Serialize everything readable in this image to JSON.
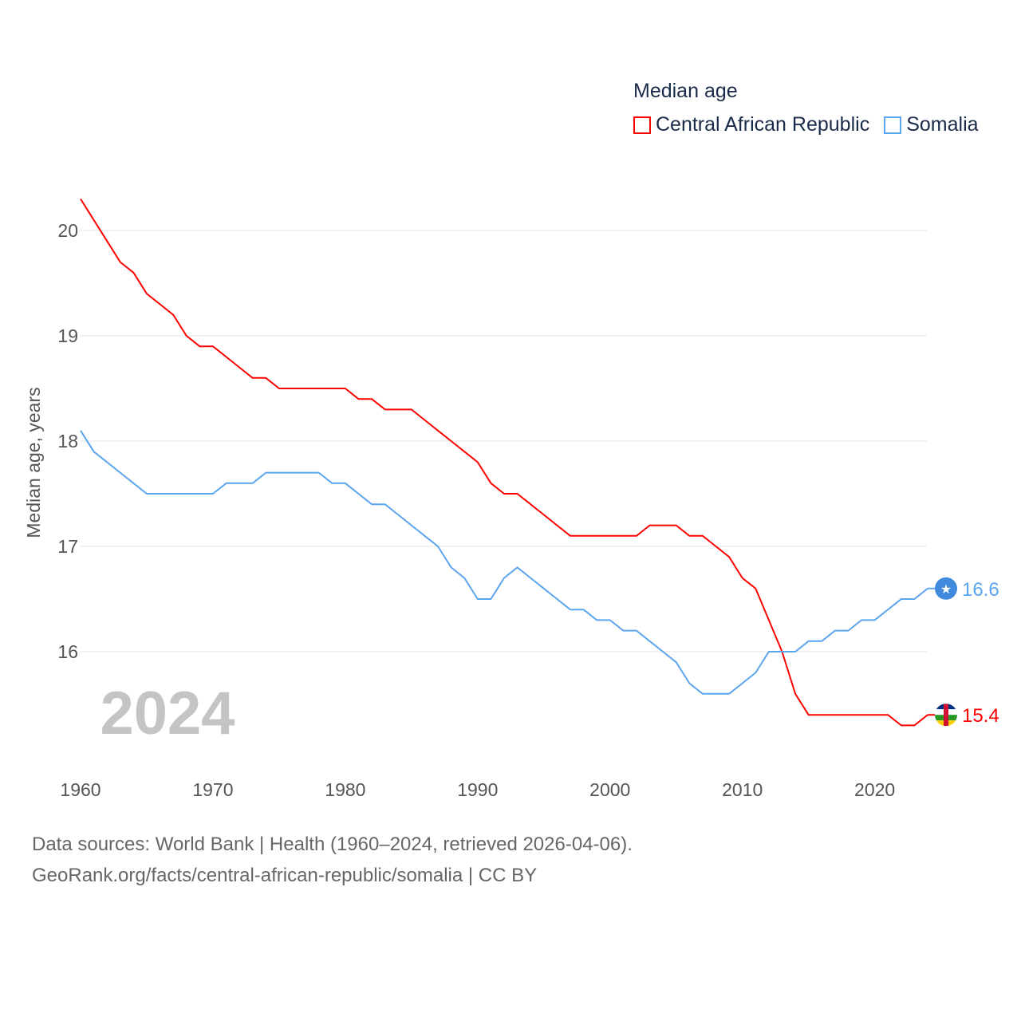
{
  "chart_data": {
    "type": "line",
    "title": "Median age",
    "xlabel": "",
    "ylabel": "Median age, years",
    "xlim": [
      1960,
      2024
    ],
    "ylim": [
      15.05,
      20.6
    ],
    "yticks": [
      16,
      17,
      18,
      19,
      20
    ],
    "xticks": [
      1960,
      1970,
      1980,
      1990,
      2000,
      2010,
      2020
    ],
    "grid": true,
    "legend_position": "top-right",
    "year_label": "2024",
    "x": [
      1960,
      1961,
      1962,
      1963,
      1964,
      1965,
      1966,
      1967,
      1968,
      1969,
      1970,
      1971,
      1972,
      1973,
      1974,
      1975,
      1976,
      1977,
      1978,
      1979,
      1980,
      1981,
      1982,
      1983,
      1984,
      1985,
      1986,
      1987,
      1988,
      1989,
      1990,
      1991,
      1992,
      1993,
      1994,
      1995,
      1996,
      1997,
      1998,
      1999,
      2000,
      2001,
      2002,
      2003,
      2004,
      2005,
      2006,
      2007,
      2008,
      2009,
      2010,
      2011,
      2012,
      2013,
      2014,
      2015,
      2016,
      2017,
      2018,
      2019,
      2020,
      2021,
      2022,
      2023,
      2024
    ],
    "series": [
      {
        "name": "Central African Republic",
        "color": "#ff0000",
        "end_label": "15.4",
        "values": [
          20.3,
          20.1,
          19.9,
          19.7,
          19.6,
          19.4,
          19.3,
          19.2,
          19.0,
          18.9,
          18.9,
          18.8,
          18.7,
          18.6,
          18.6,
          18.5,
          18.5,
          18.5,
          18.5,
          18.5,
          18.5,
          18.4,
          18.4,
          18.3,
          18.3,
          18.3,
          18.2,
          18.1,
          18.0,
          17.9,
          17.8,
          17.6,
          17.5,
          17.5,
          17.4,
          17.3,
          17.2,
          17.1,
          17.1,
          17.1,
          17.1,
          17.1,
          17.1,
          17.2,
          17.2,
          17.2,
          17.1,
          17.1,
          17.0,
          16.9,
          16.7,
          16.6,
          16.3,
          16.0,
          15.6,
          15.4,
          15.4,
          15.4,
          15.4,
          15.4,
          15.4,
          15.4,
          15.3,
          15.3,
          15.4
        ]
      },
      {
        "name": "Somalia",
        "color": "#5ba4ef",
        "end_label": "16.6",
        "values": [
          18.1,
          17.9,
          17.8,
          17.7,
          17.6,
          17.5,
          17.5,
          17.5,
          17.5,
          17.5,
          17.5,
          17.6,
          17.6,
          17.6,
          17.7,
          17.7,
          17.7,
          17.7,
          17.7,
          17.6,
          17.6,
          17.5,
          17.4,
          17.4,
          17.3,
          17.2,
          17.1,
          17.0,
          16.8,
          16.7,
          16.5,
          16.5,
          16.7,
          16.8,
          16.7,
          16.6,
          16.5,
          16.4,
          16.4,
          16.3,
          16.3,
          16.2,
          16.2,
          16.1,
          16.0,
          15.9,
          15.7,
          15.6,
          15.6,
          15.6,
          15.7,
          15.8,
          16.0,
          16.0,
          16.0,
          16.1,
          16.1,
          16.2,
          16.2,
          16.3,
          16.3,
          16.4,
          16.5,
          16.5,
          16.6
        ]
      }
    ]
  },
  "footer": {
    "line1": "Data sources: World Bank | Health (1960–2024, retrieved 2026-04-06).",
    "line2": "GeoRank.org/facts/central-african-republic/somalia | CC BY"
  }
}
